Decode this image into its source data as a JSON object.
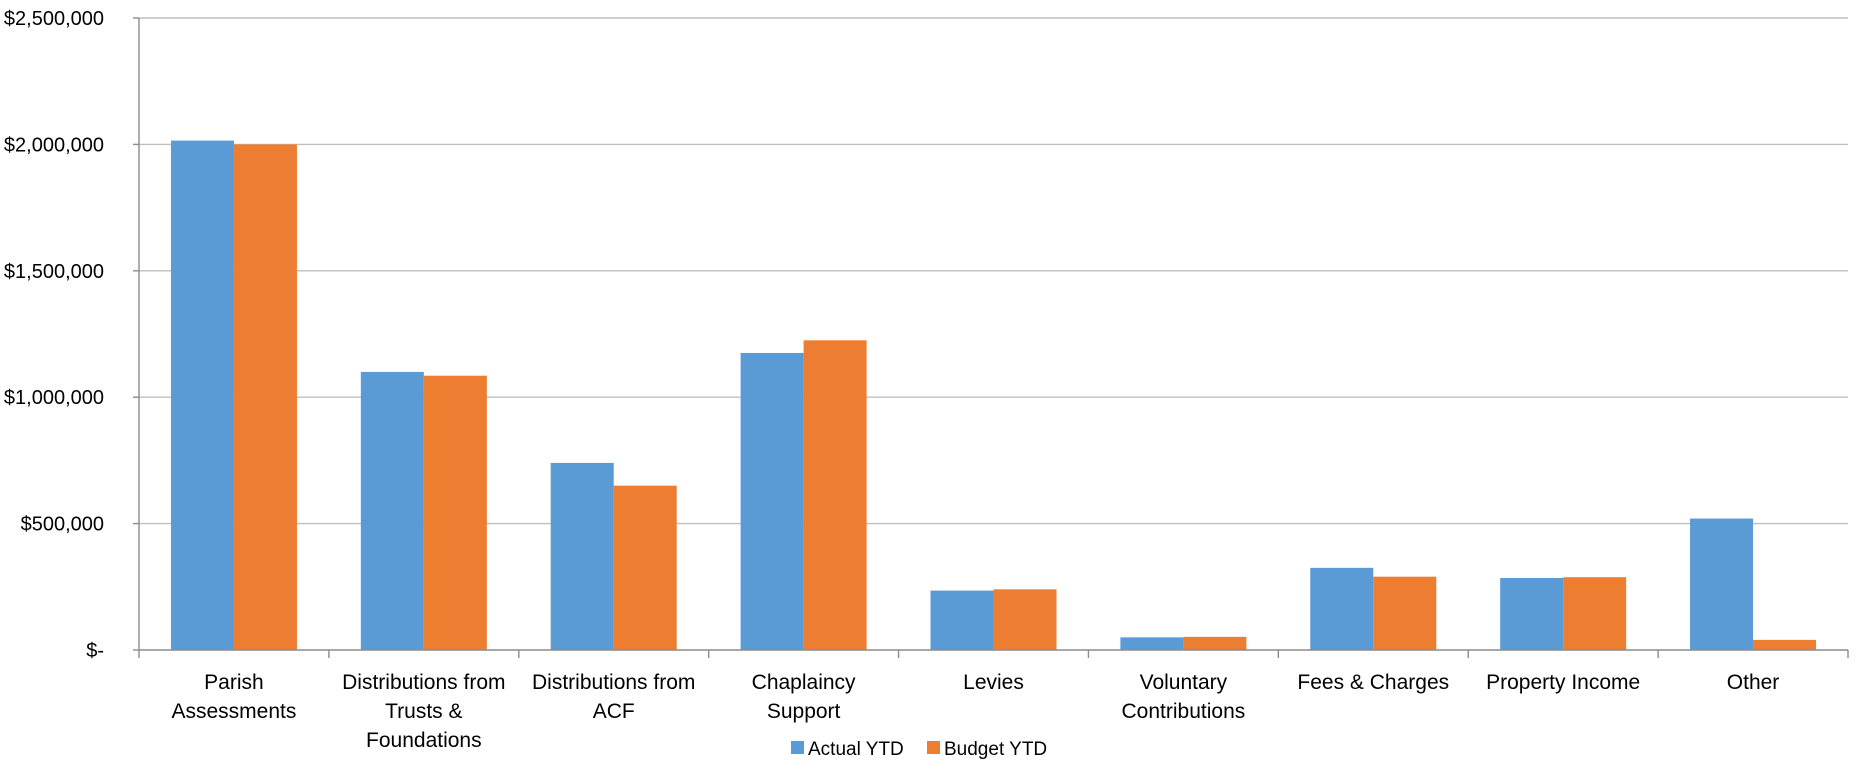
{
  "chart_data": {
    "type": "bar",
    "title": "",
    "xlabel": "",
    "ylabel": "",
    "ylim": [
      0,
      2500000
    ],
    "yticks": [
      0,
      500000,
      1000000,
      1500000,
      2000000,
      2500000
    ],
    "ytick_labels": [
      "$-",
      "$500,000",
      "$1,000,000",
      "$1,500,000",
      "$2,000,000",
      "$2,500,000"
    ],
    "grid": true,
    "legend_position": "bottom",
    "categories": [
      [
        "Parish",
        "Assessments"
      ],
      [
        "Distributions from",
        "Trusts &",
        "Foundations"
      ],
      [
        "Distributions from",
        "ACF"
      ],
      [
        "Chaplaincy",
        "Support"
      ],
      [
        "Levies"
      ],
      [
        "Voluntary",
        "Contributions"
      ],
      [
        "Fees & Charges"
      ],
      [
        "Property Income"
      ],
      [
        "Other"
      ]
    ],
    "series": [
      {
        "name": "Actual YTD",
        "color": "#5B9BD5",
        "values": [
          2015000,
          1100000,
          740000,
          1175000,
          235000,
          50000,
          325000,
          285000,
          520000
        ]
      },
      {
        "name": "Budget YTD",
        "color": "#ED7D31",
        "values": [
          2000000,
          1085000,
          650000,
          1225000,
          240000,
          52000,
          290000,
          288000,
          40000
        ]
      }
    ]
  }
}
